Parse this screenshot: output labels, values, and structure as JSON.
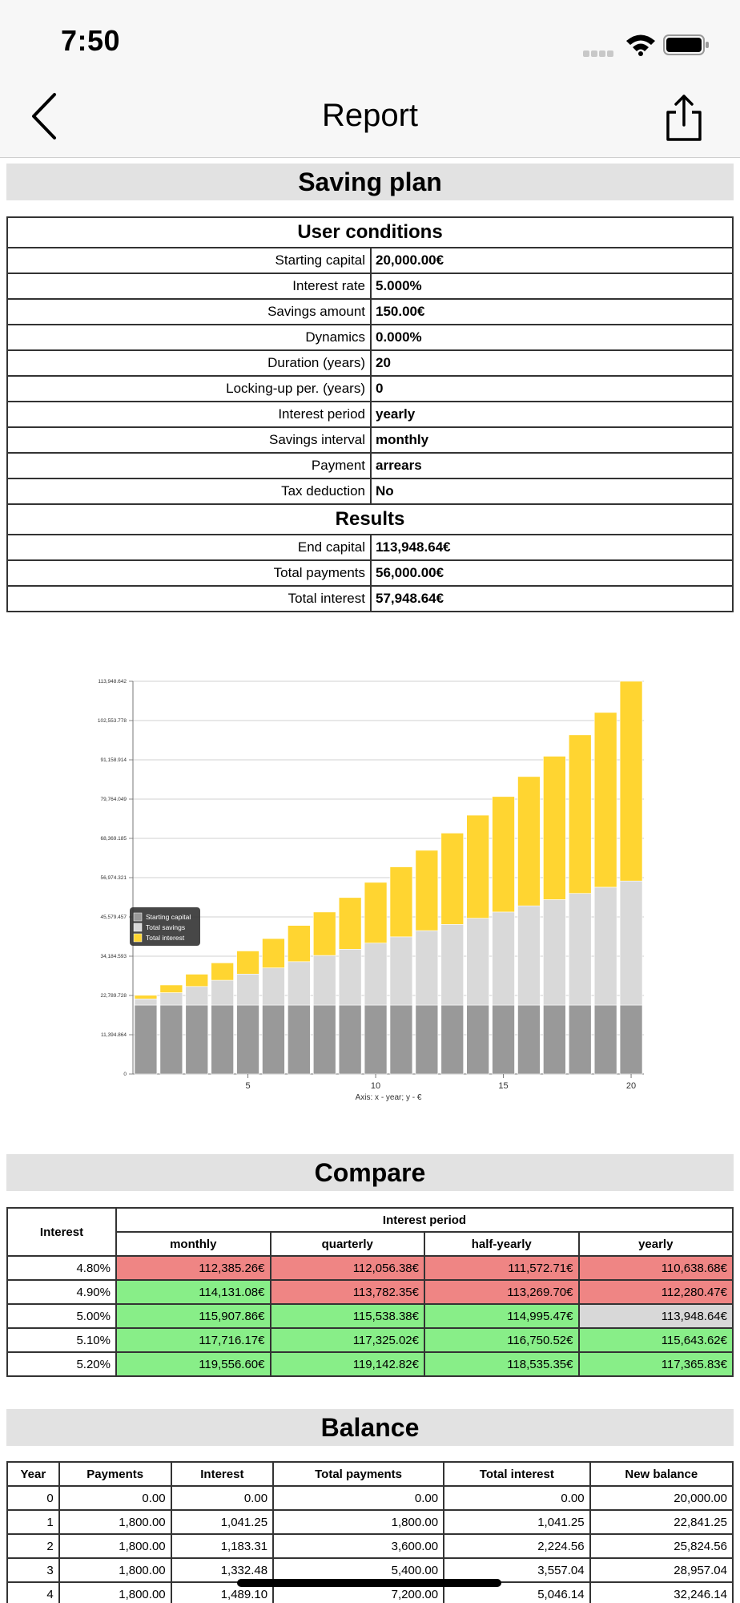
{
  "status": {
    "time": "7:50"
  },
  "nav": {
    "title": "Report"
  },
  "saving_plan": {
    "title": "Saving plan",
    "conditions_header": "User conditions",
    "conditions": [
      {
        "label": "Starting capital",
        "value": "20,000.00€"
      },
      {
        "label": "Interest rate",
        "value": "5.000%"
      },
      {
        "label": "Savings amount",
        "value": "150.00€"
      },
      {
        "label": "Dynamics",
        "value": "0.000%"
      },
      {
        "label": "Duration (years)",
        "value": "20"
      },
      {
        "label": "Locking-up per. (years)",
        "value": "0"
      },
      {
        "label": "Interest period",
        "value": "yearly"
      },
      {
        "label": "Savings interval",
        "value": "monthly"
      },
      {
        "label": "Payment",
        "value": "arrears"
      },
      {
        "label": "Tax deduction",
        "value": "No"
      }
    ],
    "results_header": "Results",
    "results": [
      {
        "label": "End capital",
        "value": "113,948.64€"
      },
      {
        "label": "Total payments",
        "value": "56,000.00€"
      },
      {
        "label": "Total interest",
        "value": "57,948.64€"
      }
    ]
  },
  "chart_data": {
    "type": "bar",
    "stacked": true,
    "xlabel": "Axis: x - year; y - €",
    "x": [
      1,
      2,
      3,
      4,
      5,
      6,
      7,
      8,
      9,
      10,
      11,
      12,
      13,
      14,
      15,
      16,
      17,
      18,
      19,
      20
    ],
    "xticks": [
      5,
      10,
      15,
      20
    ],
    "yticks": [
      "0",
      "11,394.864",
      "22,789.728",
      "34,184.593",
      "45,579.457",
      "56,974.321",
      "68,369.185",
      "79,764.049",
      "91,158.914",
      "102,553.778",
      "113,948.642"
    ],
    "ylim": [
      0,
      113948.642
    ],
    "legend_position": "left-middle",
    "series": [
      {
        "name": "Starting capital",
        "color": "#999999",
        "values": [
          20000,
          20000,
          20000,
          20000,
          20000,
          20000,
          20000,
          20000,
          20000,
          20000,
          20000,
          20000,
          20000,
          20000,
          20000,
          20000,
          20000,
          20000,
          20000,
          20000
        ]
      },
      {
        "name": "Total savings",
        "color": "#d9d9d9",
        "values": [
          1800,
          3600,
          5400,
          7200,
          9000,
          10800,
          12600,
          14400,
          16200,
          18000,
          19800,
          21600,
          23400,
          25200,
          27000,
          28800,
          30600,
          32400,
          34200,
          36000
        ]
      },
      {
        "name": "Total interest",
        "color": "#ffd531",
        "values": [
          1041.25,
          2224.56,
          3557.04,
          5046.14,
          6700,
          8500,
          10500,
          12600,
          15000,
          17600,
          20300,
          23300,
          26500,
          29900,
          33500,
          37500,
          41600,
          46000,
          50700,
          57948.64
        ]
      }
    ]
  },
  "compare": {
    "title": "Compare",
    "header_interest": "Interest",
    "header_period": "Interest period",
    "columns": [
      "monthly",
      "quarterly",
      "half-yearly",
      "yearly"
    ],
    "rows": [
      {
        "rate": "4.80%",
        "cells": [
          {
            "v": "112,385.26€",
            "c": "red"
          },
          {
            "v": "112,056.38€",
            "c": "red"
          },
          {
            "v": "111,572.71€",
            "c": "red"
          },
          {
            "v": "110,638.68€",
            "c": "red"
          }
        ]
      },
      {
        "rate": "4.90%",
        "cells": [
          {
            "v": "114,131.08€",
            "c": "green"
          },
          {
            "v": "113,782.35€",
            "c": "red"
          },
          {
            "v": "113,269.70€",
            "c": "red"
          },
          {
            "v": "112,280.47€",
            "c": "red"
          }
        ]
      },
      {
        "rate": "5.00%",
        "cells": [
          {
            "v": "115,907.86€",
            "c": "green"
          },
          {
            "v": "115,538.38€",
            "c": "green"
          },
          {
            "v": "114,995.47€",
            "c": "green"
          },
          {
            "v": "113,948.64€",
            "c": "grey"
          }
        ]
      },
      {
        "rate": "5.10%",
        "cells": [
          {
            "v": "117,716.17€",
            "c": "green"
          },
          {
            "v": "117,325.02€",
            "c": "green"
          },
          {
            "v": "116,750.52€",
            "c": "green"
          },
          {
            "v": "115,643.62€",
            "c": "green"
          }
        ]
      },
      {
        "rate": "5.20%",
        "cells": [
          {
            "v": "119,556.60€",
            "c": "green"
          },
          {
            "v": "119,142.82€",
            "c": "green"
          },
          {
            "v": "118,535.35€",
            "c": "green"
          },
          {
            "v": "117,365.83€",
            "c": "green"
          }
        ]
      }
    ]
  },
  "balance": {
    "title": "Balance",
    "columns": [
      "Year",
      "Payments",
      "Interest",
      "Total payments",
      "Total interest",
      "New balance"
    ],
    "rows": [
      [
        "0",
        "0.00",
        "0.00",
        "0.00",
        "0.00",
        "20,000.00"
      ],
      [
        "1",
        "1,800.00",
        "1,041.25",
        "1,800.00",
        "1,041.25",
        "22,841.25"
      ],
      [
        "2",
        "1,800.00",
        "1,183.31",
        "3,600.00",
        "2,224.56",
        "25,824.56"
      ],
      [
        "3",
        "1,800.00",
        "1,332.48",
        "5,400.00",
        "3,557.04",
        "28,957.04"
      ],
      [
        "4",
        "1,800.00",
        "1,489.10",
        "7,200.00",
        "5,046.14",
        "32,246.14"
      ]
    ]
  },
  "colors": {
    "red": "#ef8584",
    "green": "#88ee88",
    "grey": "#d8d8d8",
    "header_bg": "#e2e2e2"
  }
}
